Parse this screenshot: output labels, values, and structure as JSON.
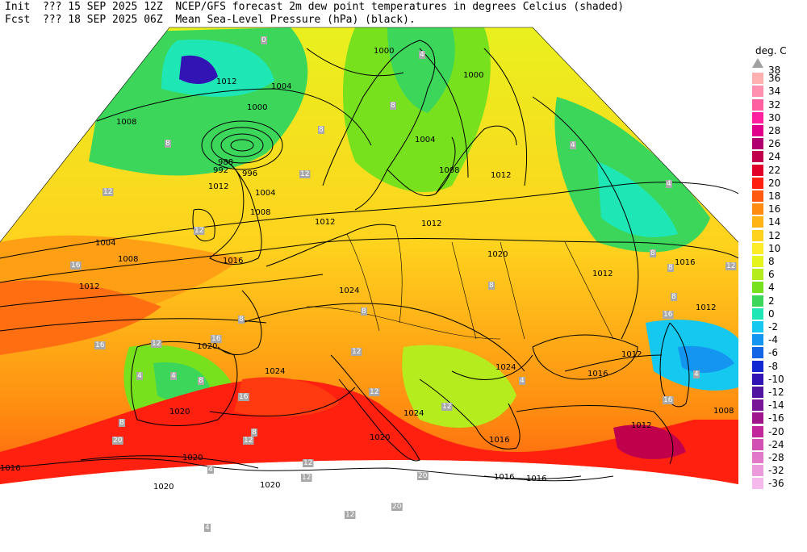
{
  "header": {
    "init_prefix": "Init",
    "init_time": "??? 15 SEP 2025 12Z",
    "fcst_prefix": "Fcst",
    "fcst_time": "??? 18 SEP 2025 06Z",
    "line1_title": "NCEP/GFS forecast 2m dew point temperatures in degrees Celcius (shaded)",
    "line2_title": "Mean Sea-Level Pressure (hPa) (black)."
  },
  "legend": {
    "unit": "deg. C",
    "levels": [
      {
        "label": "38",
        "color": "#a0a0a0",
        "shape": "triangle"
      },
      {
        "label": "36",
        "color": "#ffb0b0"
      },
      {
        "label": "34",
        "color": "#ff90b0"
      },
      {
        "label": "32",
        "color": "#ff60a0"
      },
      {
        "label": "30",
        "color": "#ff20a0"
      },
      {
        "label": "28",
        "color": "#e0008c"
      },
      {
        "label": "26",
        "color": "#b00070"
      },
      {
        "label": "24",
        "color": "#c0004a"
      },
      {
        "label": "22",
        "color": "#e00028"
      },
      {
        "label": "20",
        "color": "#ff2010"
      },
      {
        "label": "18",
        "color": "#ff5a10"
      },
      {
        "label": "16",
        "color": "#ff8c10"
      },
      {
        "label": "14",
        "color": "#ffb414"
      },
      {
        "label": "12",
        "color": "#ffd21e"
      },
      {
        "label": "10",
        "color": "#ffec28"
      },
      {
        "label": "8",
        "color": "#e6f41e"
      },
      {
        "label": "6",
        "color": "#b4ec1e"
      },
      {
        "label": "4",
        "color": "#78e11e"
      },
      {
        "label": "2",
        "color": "#3cd75a"
      },
      {
        "label": "0",
        "color": "#1ee6b4"
      },
      {
        "label": "-2",
        "color": "#14c8f0"
      },
      {
        "label": "-4",
        "color": "#1496f0"
      },
      {
        "label": "-6",
        "color": "#1464e6"
      },
      {
        "label": "-8",
        "color": "#1428d2"
      },
      {
        "label": "-10",
        "color": "#3214b4"
      },
      {
        "label": "-12",
        "color": "#5014a0"
      },
      {
        "label": "-14",
        "color": "#781496"
      },
      {
        "label": "-16",
        "color": "#a0148c"
      },
      {
        "label": "-20",
        "color": "#c0289c"
      },
      {
        "label": "-24",
        "color": "#d250b4"
      },
      {
        "label": "-28",
        "color": "#e178c8"
      },
      {
        "label": "-32",
        "color": "#eb9bdc"
      },
      {
        "label": "-36",
        "color": "#f5b9ec"
      }
    ]
  },
  "isobar_labels": [
    {
      "text": "1000"
    },
    {
      "text": "1004"
    },
    {
      "text": "1000"
    },
    {
      "text": "1008"
    },
    {
      "text": "1012"
    },
    {
      "text": "1004"
    },
    {
      "text": "1008"
    },
    {
      "text": "1012"
    },
    {
      "text": "1016"
    },
    {
      "text": "1020"
    },
    {
      "text": "1024"
    },
    {
      "text": "1020"
    },
    {
      "text": "1024"
    },
    {
      "text": "1020"
    },
    {
      "text": "1020"
    },
    {
      "text": "1020"
    },
    {
      "text": "1020"
    },
    {
      "text": "1016"
    },
    {
      "text": "1012"
    },
    {
      "text": "1016"
    },
    {
      "text": "1012"
    },
    {
      "text": "1012"
    },
    {
      "text": "1016"
    },
    {
      "text": "1012"
    },
    {
      "text": "1004"
    },
    {
      "text": "1000"
    },
    {
      "text": "1004"
    },
    {
      "text": "1008"
    },
    {
      "text": "1012"
    },
    {
      "text": "1024"
    },
    {
      "text": "1020"
    },
    {
      "text": "1012"
    },
    {
      "text": "1012"
    },
    {
      "text": "1008"
    },
    {
      "text": "1016"
    },
    {
      "text": "1016"
    },
    {
      "text": "1016"
    },
    {
      "text": "1024"
    },
    {
      "text": "1008"
    },
    {
      "text": "1012"
    },
    {
      "text": "992"
    },
    {
      "text": "996"
    },
    {
      "text": "988"
    }
  ],
  "dewpoint_labels": [
    {
      "text": "0"
    },
    {
      "text": "4"
    },
    {
      "text": "8"
    },
    {
      "text": "8"
    },
    {
      "text": "12"
    },
    {
      "text": "8"
    },
    {
      "text": "12"
    },
    {
      "text": "12"
    },
    {
      "text": "16"
    },
    {
      "text": "16"
    },
    {
      "text": "12"
    },
    {
      "text": "8"
    },
    {
      "text": "4"
    },
    {
      "text": "4"
    },
    {
      "text": "8"
    },
    {
      "text": "16"
    },
    {
      "text": "12"
    },
    {
      "text": "8"
    },
    {
      "text": "12"
    },
    {
      "text": "20"
    },
    {
      "text": "12"
    },
    {
      "text": "8"
    },
    {
      "text": "12"
    },
    {
      "text": "4"
    },
    {
      "text": "4"
    },
    {
      "text": "8"
    },
    {
      "text": "4"
    },
    {
      "text": "8"
    },
    {
      "text": "12"
    },
    {
      "text": "16"
    },
    {
      "text": "20"
    },
    {
      "text": "20"
    },
    {
      "text": "12"
    },
    {
      "text": "16"
    },
    {
      "text": "4"
    },
    {
      "text": "4"
    },
    {
      "text": "8"
    },
    {
      "text": "8"
    },
    {
      "text": "12"
    },
    {
      "text": "12"
    },
    {
      "text": "16"
    },
    {
      "text": "8"
    },
    {
      "text": "4"
    }
  ]
}
